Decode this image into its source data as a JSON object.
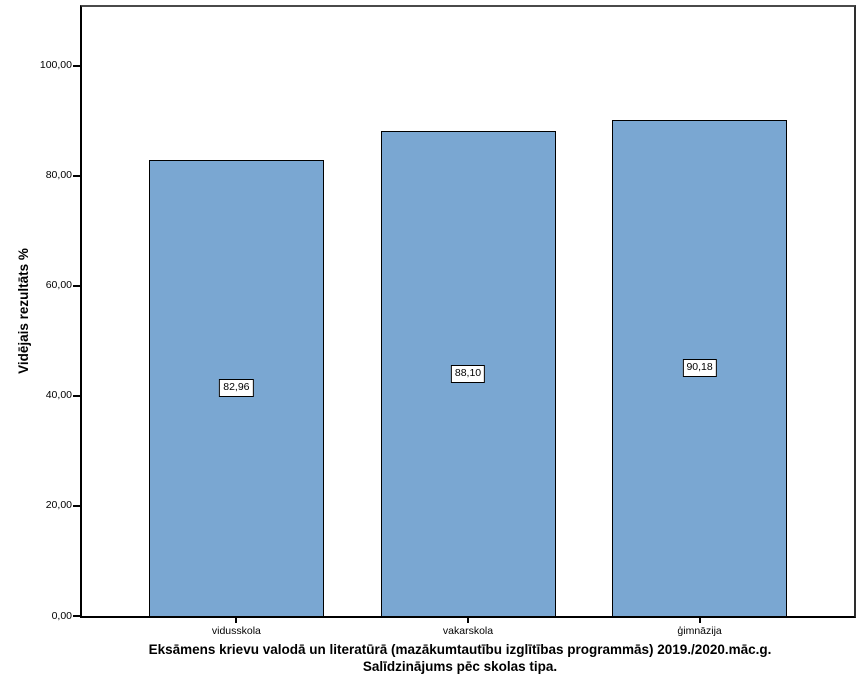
{
  "chart_data": {
    "type": "bar",
    "title_lines": [
      "Eksāmens krievu valodā un literatūrā (mazākumtautību izglītības programmās) 2019./2020.māc.g.",
      "Salīdzinājums pēc skolas tipa."
    ],
    "ylabel": "Vidējais rezultāts %",
    "xlabel": "",
    "categories": [
      "vidusskola",
      "vakarskola",
      "ģimnāzija"
    ],
    "values": [
      82.96,
      88.1,
      90.18
    ],
    "value_labels": [
      "82,96",
      "88,10",
      "90,18"
    ],
    "y_ticks": [
      {
        "value": 0,
        "label": "0,00"
      },
      {
        "value": 20,
        "label": "20,00"
      },
      {
        "value": 40,
        "label": "40,00"
      },
      {
        "value": 60,
        "label": "60,00"
      },
      {
        "value": 80,
        "label": "80,00"
      },
      {
        "value": 100,
        "label": "100,00"
      }
    ],
    "ylim": [
      0,
      110.7
    ],
    "grid": false,
    "legend": "none",
    "colors": {
      "bar_fill": "#7AA7D2",
      "bar_border": "#000000",
      "axis": "#000000",
      "value_box_bg": "#FFFFFF",
      "value_box_border": "#000000",
      "text": "#000000"
    }
  }
}
